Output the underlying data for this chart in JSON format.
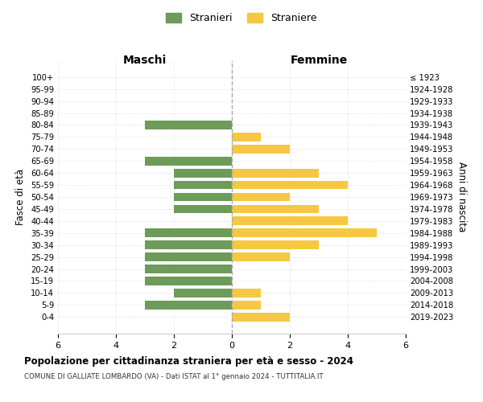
{
  "age_groups": [
    "100+",
    "95-99",
    "90-94",
    "85-89",
    "80-84",
    "75-79",
    "70-74",
    "65-69",
    "60-64",
    "55-59",
    "50-54",
    "45-49",
    "40-44",
    "35-39",
    "30-34",
    "25-29",
    "20-24",
    "15-19",
    "10-14",
    "5-9",
    "0-4"
  ],
  "birth_years": [
    "≤ 1923",
    "1924-1928",
    "1929-1933",
    "1934-1938",
    "1939-1943",
    "1944-1948",
    "1949-1953",
    "1954-1958",
    "1959-1963",
    "1964-1968",
    "1969-1973",
    "1974-1978",
    "1979-1983",
    "1984-1988",
    "1989-1993",
    "1994-1998",
    "1999-2003",
    "2004-2008",
    "2009-2013",
    "2014-2018",
    "2019-2023"
  ],
  "males": [
    0,
    0,
    0,
    0,
    3,
    0,
    0,
    3,
    2,
    2,
    2,
    2,
    0,
    3,
    3,
    3,
    3,
    3,
    2,
    3,
    0
  ],
  "females": [
    0,
    0,
    0,
    0,
    0,
    1,
    2,
    0,
    3,
    4,
    2,
    3,
    4,
    5,
    3,
    2,
    0,
    0,
    1,
    1,
    2
  ],
  "male_color": "#6d9b5a",
  "female_color": "#f5c842",
  "title": "Popolazione per cittadinanza straniera per età e sesso - 2024",
  "subtitle": "COMUNE DI GALLIATE LOMBARDO (VA) - Dati ISTAT al 1° gennaio 2024 - TUTTITALIA.IT",
  "xlabel_left": "Maschi",
  "xlabel_right": "Femmine",
  "ylabel_left": "Fasce di età",
  "ylabel_right": "Anni di nascita",
  "legend_male": "Stranieri",
  "legend_female": "Straniere",
  "xlim": 6,
  "background_color": "#ffffff",
  "grid_color": "#cccccc",
  "center_line_color": "#aaaaaa"
}
